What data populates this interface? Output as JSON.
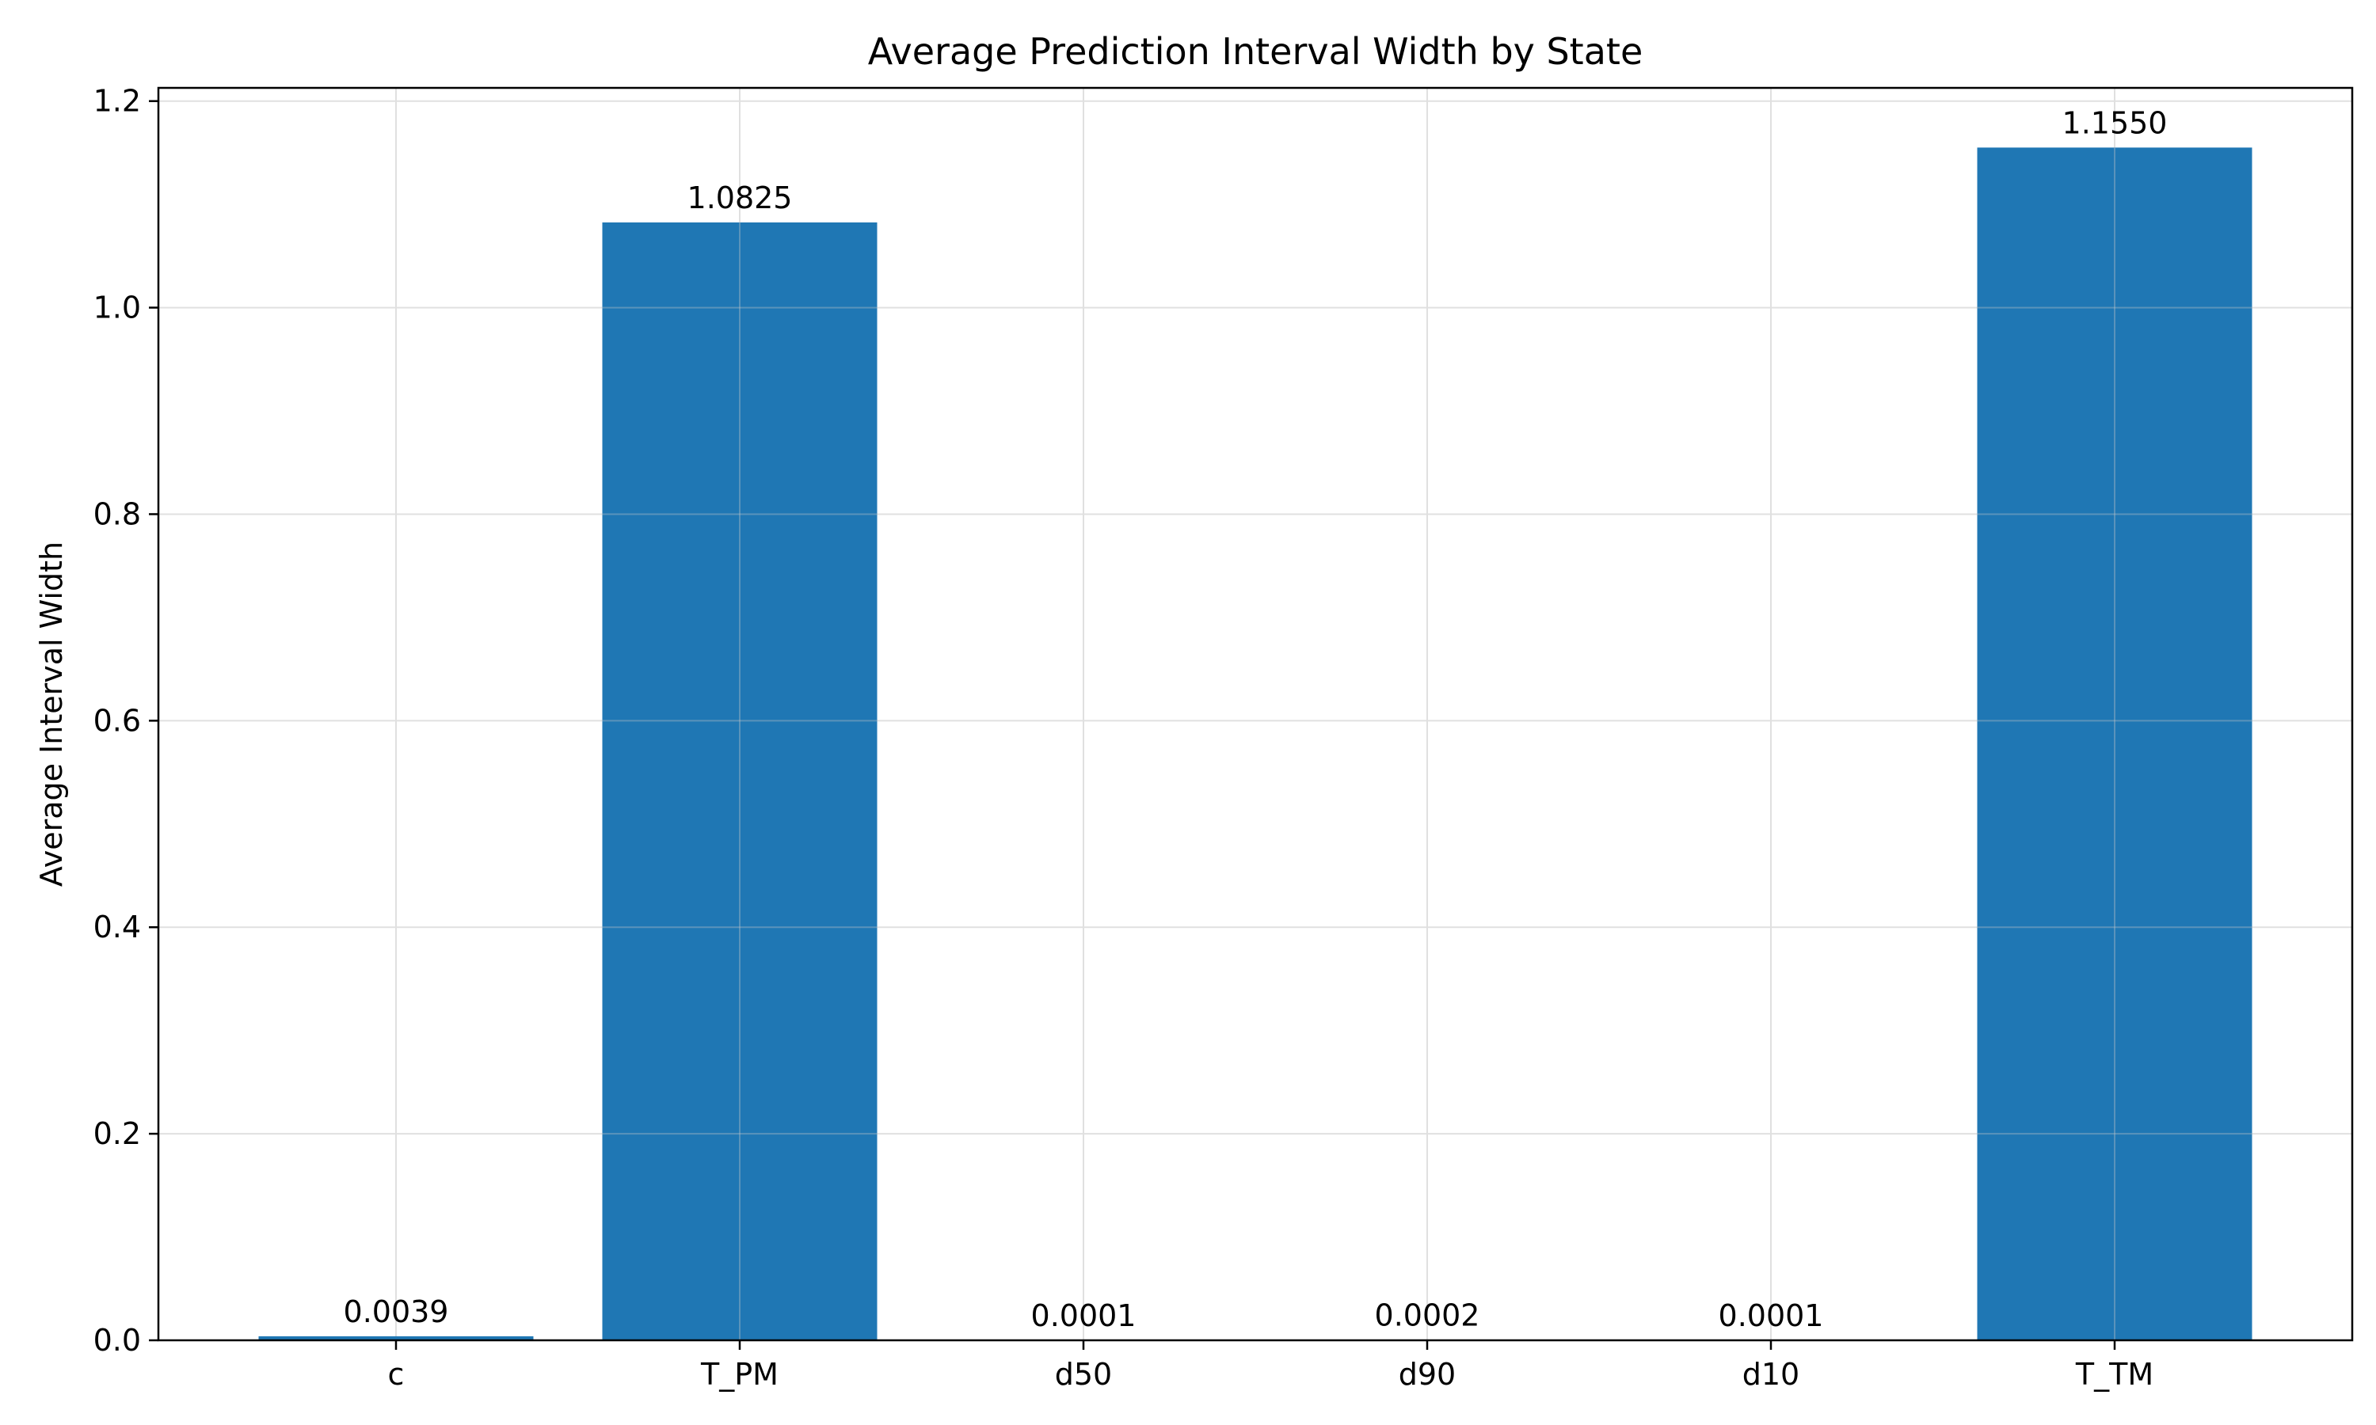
{
  "chart_data": {
    "type": "bar",
    "title": "Average Prediction Interval Width by State",
    "xlabel": "",
    "ylabel": "Average Interval Width",
    "categories": [
      "c",
      "T_PM",
      "d50",
      "d90",
      "d10",
      "T_TM"
    ],
    "values": [
      0.0039,
      1.0825,
      0.0001,
      0.0002,
      0.0001,
      1.155
    ],
    "data_labels": [
      "0.0039",
      "1.0825",
      "0.0001",
      "0.0002",
      "0.0001",
      "1.1550"
    ],
    "ylim": [
      0,
      1.2128
    ],
    "yticks": [
      0.0,
      0.2,
      0.4,
      0.6,
      0.8,
      1.0,
      1.2
    ],
    "ytick_labels": [
      "0.0",
      "0.2",
      "0.4",
      "0.6",
      "0.8",
      "1.0",
      "1.2"
    ],
    "grid": true,
    "bar_color": "#1f77b4",
    "grid_color": "#e0e0e0"
  }
}
